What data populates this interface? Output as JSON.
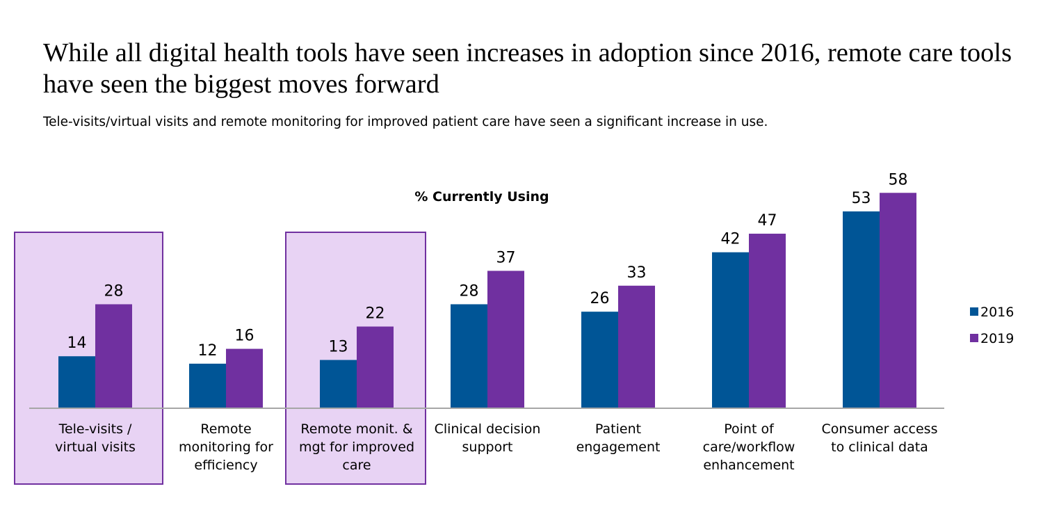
{
  "headline": "While all digital health tools have seen increases in adoption since 2016, remote care tools have seen the biggest moves forward",
  "subtitle": "Tele-visits/virtual visits and remote monitoring for improved patient care have seen a significant increase in use.",
  "chart_data": {
    "type": "bar",
    "title": "% Currently Using",
    "categories": [
      [
        "Tele-visits /",
        "virtual visits"
      ],
      [
        "Remote",
        "monitoring for",
        "efficiency"
      ],
      [
        "Remote monit. &",
        "mgt for improved",
        "care"
      ],
      [
        "Clinical decision",
        "support"
      ],
      [
        "Patient",
        "engagement"
      ],
      [
        "Point of",
        "care/workflow",
        "enhancement"
      ],
      [
        "Consumer access",
        "to clinical data"
      ]
    ],
    "series": [
      {
        "name": "2016",
        "color": "#005596",
        "values": [
          14,
          12,
          13,
          28,
          26,
          42,
          53
        ]
      },
      {
        "name": "2019",
        "color": "#7030a0",
        "values": [
          28,
          16,
          22,
          37,
          33,
          47,
          58
        ]
      }
    ],
    "highlighted_categories": [
      0,
      2
    ],
    "highlight_color": "#e8d3f4",
    "ylim": [
      0,
      58
    ],
    "legend_position": "right",
    "grid": false
  }
}
